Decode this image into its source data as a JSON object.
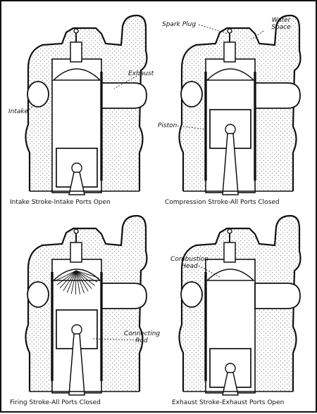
{
  "captions": [
    "Intake Stroke-Intake Ports Open",
    "Compression Stroke-All Ports Closed",
    "Firing Stroke-All Ports Closed",
    "Exhaust Stroke-Exhaust Ports Open"
  ],
  "labels": {
    "exhaust": "Exhaust",
    "intake": "Intake",
    "spark_plug": "Spark Plug",
    "water_space": "Water Space",
    "piston": "Piston",
    "connecting_rod": "Connecting Rod",
    "combustion_head": "Combustion Head"
  },
  "colors": {
    "ink": "#111111",
    "paper": "#ffffff",
    "water_stipple": "#9a9a9a"
  }
}
